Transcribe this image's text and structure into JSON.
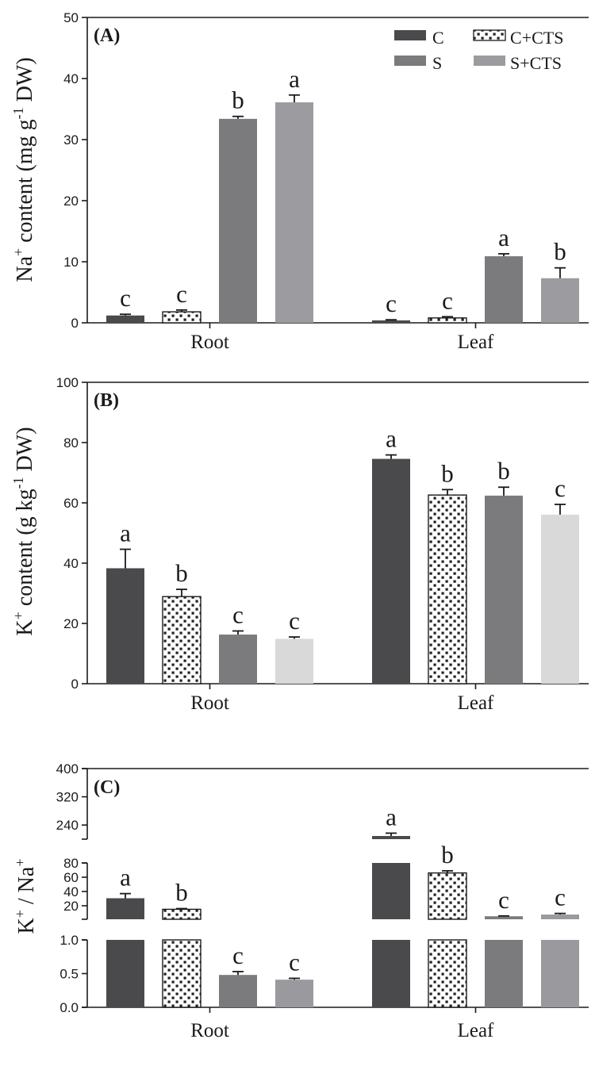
{
  "chart_data": [
    {
      "type": "bar",
      "panel_label": "(A)",
      "ylabel": {
        "pre": "Na",
        "sup1": "+",
        "mid": " content  (mg g",
        "sup2": "-1",
        "post": " DW)"
      },
      "ylim": [
        0,
        50
      ],
      "yticks": [
        0,
        10,
        20,
        30,
        40,
        50
      ],
      "categories": [
        "Root",
        "Leaf"
      ],
      "series": [
        {
          "name": "C",
          "values": [
            1.2,
            0.4
          ],
          "errors": [
            0.2,
            0.1
          ],
          "letters": [
            "c",
            "c"
          ]
        },
        {
          "name": "C+CTS",
          "values": [
            1.8,
            0.8
          ],
          "errors": [
            0.3,
            0.2
          ],
          "letters": [
            "c",
            "c"
          ]
        },
        {
          "name": "S",
          "values": [
            33.4,
            10.9
          ],
          "errors": [
            0.4,
            0.4
          ],
          "letters": [
            "b",
            "a"
          ]
        },
        {
          "name": "S+CTS",
          "values": [
            36.1,
            7.3
          ],
          "errors": [
            1.2,
            1.7
          ],
          "letters": [
            "a",
            "b"
          ]
        }
      ],
      "legend": {
        "position": "top-right",
        "items": [
          "C",
          "C+CTS",
          "S",
          "S+CTS"
        ]
      }
    },
    {
      "type": "bar",
      "panel_label": "(B)",
      "ylabel": {
        "pre": "K",
        "sup1": "+",
        "mid": " content  (g kg",
        "sup2": "-1",
        "post": " DW)"
      },
      "ylim": [
        0,
        100
      ],
      "yticks": [
        0,
        20,
        40,
        60,
        80,
        100
      ],
      "categories": [
        "Root",
        "Leaf"
      ],
      "series": [
        {
          "name": "C",
          "values": [
            38.3,
            74.6
          ],
          "errors": [
            6.3,
            1.3
          ],
          "letters": [
            "a",
            "a"
          ]
        },
        {
          "name": "C+CTS",
          "values": [
            28.9,
            62.6
          ],
          "errors": [
            2.4,
            1.8
          ],
          "letters": [
            "b",
            "b"
          ]
        },
        {
          "name": "S",
          "values": [
            16.3,
            62.4
          ],
          "errors": [
            1.2,
            2.8
          ],
          "letters": [
            "c",
            "b"
          ]
        },
        {
          "name": "S+CTS",
          "values": [
            14.9,
            56.1
          ],
          "errors": [
            0.6,
            3.4
          ],
          "letters": [
            "c",
            "c"
          ]
        }
      ]
    },
    {
      "type": "bar",
      "panel_label": "(C)",
      "ylabel": {
        "pre": "K",
        "sup1": "+",
        "mid": " / Na",
        "sup2": "+",
        "post": ""
      },
      "axis_breaks": true,
      "segments": [
        {
          "range": [
            0,
            1.0
          ],
          "ticks": [
            "0.0",
            "0.5",
            "1.0"
          ]
        },
        {
          "range": [
            1.0,
            80
          ],
          "ticks": [
            "20",
            "40",
            "60",
            "80"
          ]
        },
        {
          "range": [
            200,
            400
          ],
          "ticks": [
            "240",
            "320",
            "400"
          ]
        }
      ],
      "categories": [
        "Root",
        "Leaf"
      ],
      "series": [
        {
          "name": "C",
          "values": [
            30.5,
            209.0
          ],
          "errors": [
            6.5,
            8.0
          ],
          "letters": [
            "a",
            "a"
          ]
        },
        {
          "name": "C+CTS",
          "values": [
            15.0,
            66.0
          ],
          "errors": [
            1.0,
            3.0
          ],
          "letters": [
            "b",
            "b"
          ]
        },
        {
          "name": "S",
          "values": [
            0.48,
            5.2
          ],
          "errors": [
            0.05,
            0.5
          ],
          "letters": [
            "c",
            "c"
          ]
        },
        {
          "name": "S+CTS",
          "values": [
            0.41,
            7.6
          ],
          "errors": [
            0.02,
            1.6
          ],
          "letters": [
            "c",
            "c"
          ]
        }
      ]
    }
  ],
  "colors": {
    "C": "#4a494c",
    "C+CTS_fill": "#ffffff",
    "C+CTS_dots": "#1f1f1f",
    "S": "#7b7b7d",
    "S+CTS_A": "#9c9ca0",
    "S+CTS_B": "#d9d9d9",
    "S+CTS_C": "#9a9a9e",
    "axis": "#1a1a1a"
  }
}
